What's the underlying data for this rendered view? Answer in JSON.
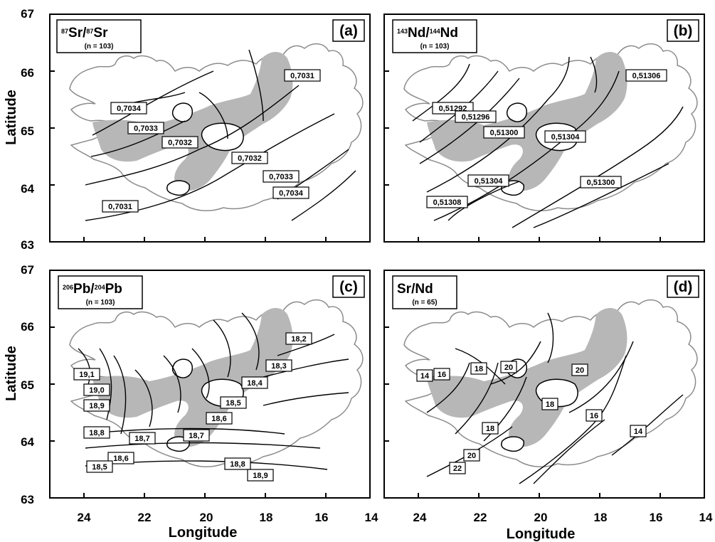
{
  "axes": {
    "ylabel": "Latitude",
    "xlabel": "Longitude",
    "y_ticks": [
      "67",
      "66",
      "65",
      "64",
      "63"
    ],
    "x_ticks": [
      "24",
      "22",
      "20",
      "18",
      "16",
      "14"
    ]
  },
  "colors": {
    "rift_zone": "#b7b7b7",
    "coast": "#8c8c8c",
    "lines": "#000000"
  },
  "panels": [
    {
      "tag": "(a)",
      "title_sup1": "87",
      "title_a": "Sr/",
      "title_sup2": "87",
      "title_b": "Sr",
      "n": "(n = 103)",
      "labels": [
        "0,7031",
        "0,7034",
        "0,7033",
        "0,7032",
        "0,7032",
        "0,7033",
        "0,7034",
        "0,7031"
      ]
    },
    {
      "tag": "(b)",
      "title_sup1": "143",
      "title_a": "Nd/",
      "title_sup2": "144",
      "title_b": "Nd",
      "n": "(n = 103)",
      "labels": [
        "0,51306",
        "0,51292",
        "0,51296",
        "0,51300",
        "0,51304",
        "0,51304",
        "0,51300",
        "0,51308"
      ]
    },
    {
      "tag": "(c)",
      "title_sup1": "206",
      "title_a": "Pb/",
      "title_sup2": "204",
      "title_b": "Pb",
      "n": "(n = 103)",
      "labels": [
        "18,2",
        "18,3",
        "19,1",
        "18,4",
        "19,0",
        "18,5",
        "18,9",
        "18,6",
        "18,8",
        "18,7",
        "18,7",
        "18,6",
        "18,8",
        "18,5",
        "18,9"
      ]
    },
    {
      "tag": "(d)",
      "title_sup1": "",
      "title_a": "Sr/Nd",
      "title_sup2": "",
      "title_b": "",
      "n": "(n = 65)",
      "labels": [
        "14",
        "16",
        "18",
        "20",
        "20",
        "18",
        "16",
        "18",
        "14",
        "20",
        "22"
      ]
    }
  ]
}
